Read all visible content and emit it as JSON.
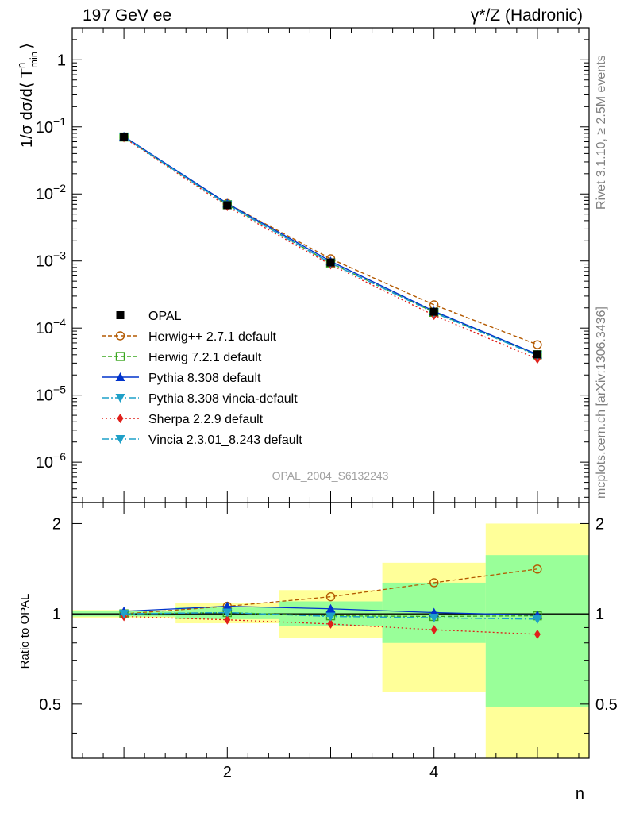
{
  "header": {
    "left_title": "197 GeV ee",
    "right_title": "γ*/Z (Hadronic)"
  },
  "side_texts": {
    "rivet": "Rivet 3.1.10, ≥ 2.5M events",
    "mcplots": "mcplots.cern.ch [arXiv:1306.3436]"
  },
  "analysis_label": "OPAL_2004_S6132243",
  "axes": {
    "xlabel": "n",
    "ylabel_main": "1/σ dσ/d⟨ T",
    "ylabel_main_sup": "n",
    "ylabel_main_sub": "min",
    "ylabel_main_close": "⟩",
    "ylabel_ratio": "Ratio to OPAL",
    "main_yticks": [
      {
        "base": "1",
        "exp": ""
      },
      {
        "base": "10",
        "exp": "−1"
      },
      {
        "base": "10",
        "exp": "−2"
      },
      {
        "base": "10",
        "exp": "−3"
      },
      {
        "base": "10",
        "exp": "−4"
      },
      {
        "base": "10",
        "exp": "−5"
      },
      {
        "base": "10",
        "exp": "−6"
      }
    ],
    "ratio_yticks": [
      "2",
      "1",
      "0.5"
    ],
    "xticks": [
      "2",
      "4"
    ]
  },
  "chart_data": {
    "type": "line",
    "title": "197 GeV ee",
    "xlabel": "n",
    "ylabel": "1/σ dσ/d⟨T^n_min⟩",
    "xlim": [
      0.5,
      5.5
    ],
    "ylim": [
      2.5e-07,
      3
    ],
    "yscale": "log",
    "ratio_ylim": [
      0.33,
      2.35
    ],
    "x": [
      1,
      2,
      3,
      4,
      5
    ],
    "reference": {
      "name": "OPAL",
      "values": [
        0.0705,
        0.0068,
        0.00095,
        0.000175,
        4.05e-05
      ],
      "ratio_band_inner": [
        {
          "x": [
            0.5,
            1.5
          ],
          "lo": 0.98,
          "hi": 1.02
        },
        {
          "x": [
            1.5,
            2.5
          ],
          "lo": 0.96,
          "hi": 1.05
        },
        {
          "x": [
            2.5,
            3.5
          ],
          "lo": 0.91,
          "hi": 1.1
        },
        {
          "x": [
            3.5,
            4.5
          ],
          "lo": 0.8,
          "hi": 1.27
        },
        {
          "x": [
            4.5,
            5.5
          ],
          "lo": 0.49,
          "hi": 1.57
        }
      ],
      "ratio_band_outer": [
        {
          "x": [
            0.5,
            1.5
          ],
          "lo": 0.97,
          "hi": 1.03
        },
        {
          "x": [
            1.5,
            2.5
          ],
          "lo": 0.93,
          "hi": 1.09
        },
        {
          "x": [
            2.5,
            3.5
          ],
          "lo": 0.83,
          "hi": 1.2
        },
        {
          "x": [
            3.5,
            4.5
          ],
          "lo": 0.55,
          "hi": 1.48
        },
        {
          "x": [
            4.5,
            5.5
          ],
          "lo": 0.33,
          "hi": 2.0
        }
      ]
    },
    "series": [
      {
        "name": "Herwig++ 2.7.1 default",
        "color": "#b35900",
        "dash": "5,3",
        "marker": "circle-open",
        "values": [
          0.0705,
          0.0072,
          0.00108,
          0.000222,
          5.65e-05
        ],
        "ratio": [
          1.0,
          1.06,
          1.14,
          1.27,
          1.41
        ]
      },
      {
        "name": "Herwig 7.2.1 default",
        "color": "#3aa61e",
        "dash": "5,3",
        "marker": "square-open",
        "values": [
          0.0705,
          0.0069,
          0.000935,
          0.000172,
          4e-05
        ],
        "ratio": [
          1.0,
          1.01,
          0.985,
          0.98,
          0.985
        ]
      },
      {
        "name": "Pythia 8.308 default",
        "color": "#0033cc",
        "dash": "",
        "marker": "triangle-up",
        "values": [
          0.072,
          0.0072,
          0.00099,
          0.000178,
          4.05e-05
        ],
        "ratio": [
          1.02,
          1.06,
          1.04,
          1.01,
          0.99
        ]
      },
      {
        "name": "Pythia 8.308 vincia-default",
        "color": "#1fa0c8",
        "dash": "9,3,2,3",
        "marker": "triangle-down",
        "values": [
          0.0705,
          0.0069,
          0.00093,
          0.00017,
          3.9e-05
        ],
        "ratio": [
          1.0,
          1.01,
          0.98,
          0.97,
          0.96
        ]
      },
      {
        "name": "Sherpa 2.2.9 default",
        "color": "#e0201a",
        "dash": "2,3",
        "marker": "diamond",
        "values": [
          0.069,
          0.0065,
          0.00088,
          0.000155,
          3.45e-05
        ],
        "ratio": [
          0.98,
          0.955,
          0.925,
          0.885,
          0.855
        ]
      },
      {
        "name": "Vincia 2.3.01_8.243 default",
        "color": "#1fa0c8",
        "dash": "9,3,2,3",
        "marker": "triangle-down",
        "values": [
          0.0705,
          0.0069,
          0.00093,
          0.00017,
          3.9e-05
        ],
        "ratio": [
          1.0,
          1.01,
          0.98,
          0.97,
          0.96
        ]
      }
    ],
    "legend_position": "lower-left"
  }
}
